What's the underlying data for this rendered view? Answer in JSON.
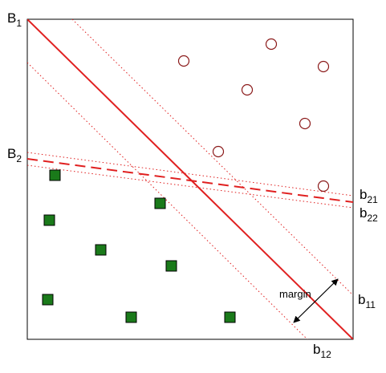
{
  "labels": {
    "B1": {
      "main": "B",
      "sub": "1"
    },
    "B2": {
      "main": "B",
      "sub": "2"
    },
    "b21": {
      "main": "b",
      "sub": "21"
    },
    "b22": {
      "main": "b",
      "sub": "22"
    },
    "b11": {
      "main": "b",
      "sub": "11"
    },
    "b12": {
      "main": "b",
      "sub": "12"
    },
    "margin": "margin"
  },
  "colors": {
    "boundary": "#e02020",
    "square_fill": "#1a7a1a",
    "circle_stroke": "#8b1a1a",
    "frame": "#000000"
  }
}
